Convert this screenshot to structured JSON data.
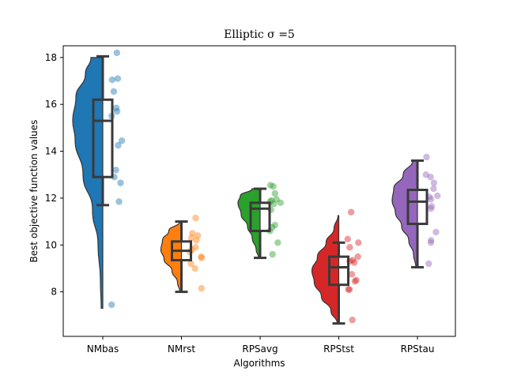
{
  "chart_data": {
    "type": "violin",
    "title": "Elliptic σ =5",
    "xlabel": "Algorithms",
    "ylabel": "Best objective function values",
    "ylim": [
      6.1,
      18.5
    ],
    "yticks": [
      8,
      10,
      12,
      14,
      16,
      18
    ],
    "grid": false,
    "legend": "none",
    "categories": [
      "NMbas",
      "NMrst",
      "RPSavg",
      "RPStst",
      "RPStau"
    ],
    "series": [
      {
        "color": "#1f77b4",
        "box": {
          "min": 11.7,
          "q1": 12.9,
          "median": 15.3,
          "q3": 16.2,
          "max": 18.05
        },
        "violin": {
          "ymin": 7.3,
          "ymax": 18.0,
          "widths": [
            [
              7.3,
              0.02
            ],
            [
              8.5,
              0.03
            ],
            [
              10.0,
              0.06
            ],
            [
              11.5,
              0.13
            ],
            [
              13.0,
              0.25
            ],
            [
              14.5,
              0.35
            ],
            [
              15.3,
              0.38
            ],
            [
              16.3,
              0.34
            ],
            [
              17.3,
              0.22
            ],
            [
              18.0,
              0.15
            ]
          ]
        },
        "points": [
          18.2,
          17.1,
          17.05,
          16.55,
          15.85,
          15.7,
          15.5,
          14.45,
          14.25,
          13.2,
          12.9,
          12.65,
          11.85,
          7.45
        ]
      },
      {
        "color": "#ff7f0e",
        "box": {
          "min": 8.0,
          "q1": 9.35,
          "median": 9.75,
          "q3": 10.15,
          "max": 11.0
        },
        "violin": {
          "ymin": 8.0,
          "ymax": 11.0,
          "widths": [
            [
              8.0,
              0.02
            ],
            [
              8.4,
              0.05
            ],
            [
              8.9,
              0.12
            ],
            [
              9.4,
              0.22
            ],
            [
              9.8,
              0.26
            ],
            [
              10.2,
              0.24
            ],
            [
              10.6,
              0.16
            ],
            [
              11.0,
              0.02
            ]
          ]
        },
        "points": [
          11.15,
          10.5,
          10.4,
          10.3,
          10.2,
          9.9,
          9.8,
          9.7,
          9.5,
          9.45,
          9.2,
          9.0,
          8.15
        ]
      },
      {
        "color": "#2ca02c",
        "box": {
          "min": 9.45,
          "q1": 10.6,
          "median": 11.55,
          "q3": 11.8,
          "max": 12.4
        },
        "violin": {
          "ymin": 9.45,
          "ymax": 12.4,
          "widths": [
            [
              9.45,
              0.02
            ],
            [
              9.8,
              0.05
            ],
            [
              10.3,
              0.1
            ],
            [
              10.8,
              0.16
            ],
            [
              11.3,
              0.24
            ],
            [
              11.8,
              0.28
            ],
            [
              12.1,
              0.25
            ],
            [
              12.4,
              0.1
            ]
          ]
        },
        "points": [
          12.55,
          12.5,
          12.2,
          11.95,
          11.9,
          11.85,
          11.8,
          11.75,
          11.5,
          10.85,
          10.75,
          10.6,
          10.1,
          9.6
        ]
      },
      {
        "color": "#d62728",
        "box": {
          "min": 6.65,
          "q1": 8.3,
          "median": 9.05,
          "q3": 9.5,
          "max": 10.1
        },
        "violin": {
          "ymin": 6.65,
          "ymax": 11.25,
          "widths": [
            [
              6.65,
              0.02
            ],
            [
              7.2,
              0.1
            ],
            [
              7.8,
              0.22
            ],
            [
              8.4,
              0.31
            ],
            [
              8.9,
              0.34
            ],
            [
              9.5,
              0.27
            ],
            [
              10.1,
              0.16
            ],
            [
              10.7,
              0.06
            ],
            [
              11.25,
              0.01
            ]
          ]
        },
        "points": [
          11.4,
          10.25,
          10.1,
          9.9,
          9.5,
          9.35,
          9.3,
          9.25,
          8.75,
          8.5,
          8.45,
          8.1,
          8.1,
          6.8
        ]
      },
      {
        "color": "#9467bd",
        "box": {
          "min": 9.05,
          "q1": 10.9,
          "median": 11.85,
          "q3": 12.35,
          "max": 13.6
        },
        "violin": {
          "ymin": 9.05,
          "ymax": 13.6,
          "widths": [
            [
              9.05,
              0.02
            ],
            [
              9.6,
              0.05
            ],
            [
              10.2,
              0.11
            ],
            [
              10.8,
              0.2
            ],
            [
              11.4,
              0.28
            ],
            [
              11.9,
              0.32
            ],
            [
              12.4,
              0.3
            ],
            [
              13.0,
              0.18
            ],
            [
              13.6,
              0.06
            ]
          ]
        },
        "points": [
          13.75,
          13.0,
          12.9,
          12.65,
          12.4,
          12.1,
          12.05,
          11.95,
          11.65,
          11.55,
          10.55,
          10.2,
          10.1,
          9.2
        ]
      }
    ]
  }
}
